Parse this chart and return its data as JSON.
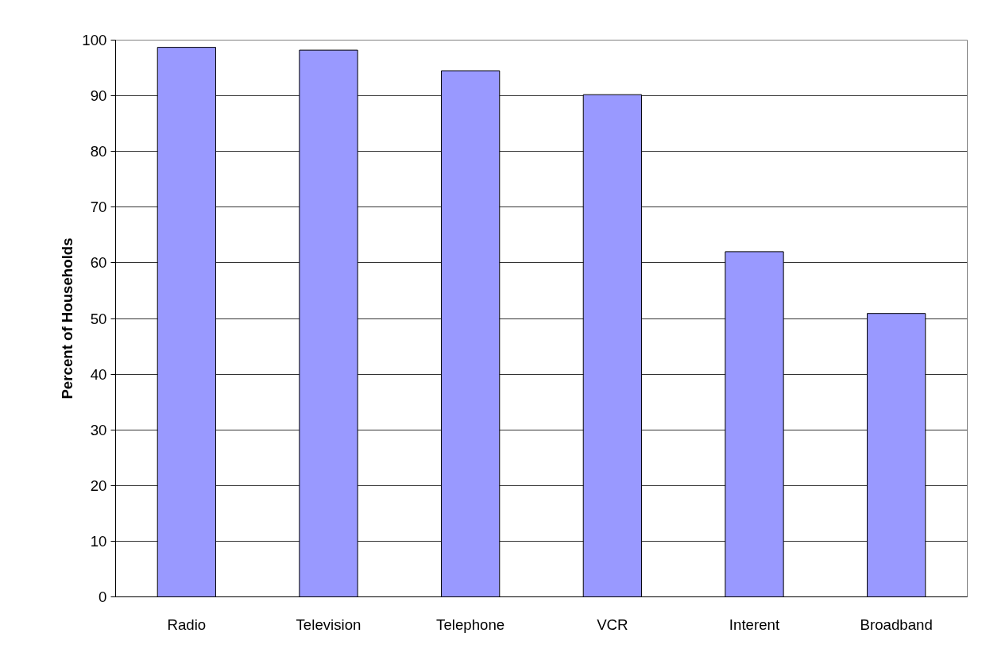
{
  "chart_data": {
    "type": "bar",
    "ylabel": "Percent of Households",
    "categories": [
      "Radio",
      "Television",
      "Telephone",
      "VCR",
      "Interent",
      "Broadband"
    ],
    "values": [
      98.7,
      98.2,
      94.5,
      90.2,
      62.0,
      50.9
    ],
    "color": "#9999ff",
    "ylim": [
      0,
      100
    ],
    "yticks": [
      0,
      10,
      20,
      30,
      40,
      50,
      60,
      70,
      80,
      90,
      100
    ],
    "grid": "y"
  }
}
